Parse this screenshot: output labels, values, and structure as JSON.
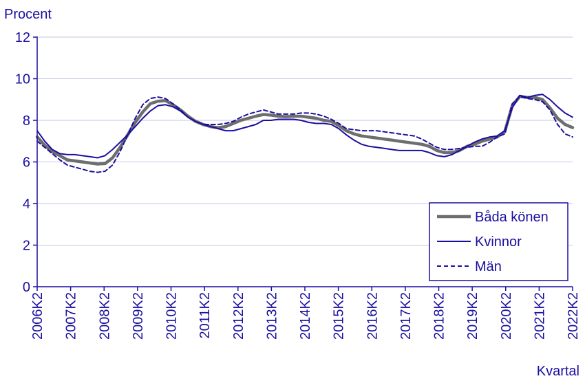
{
  "chart_data": {
    "type": "line",
    "ylabel": "Procent",
    "xlabel": "Kvartal",
    "ylim": [
      0,
      12
    ],
    "yticks": [
      0,
      2,
      4,
      6,
      8,
      10,
      12
    ],
    "xticks": [
      "2006K2",
      "2007K2",
      "2008K2",
      "2009K2",
      "2010K2",
      "2011K2",
      "2012K2",
      "2013K2",
      "2014K2",
      "2015K2",
      "2016K2",
      "2017K2",
      "2018K2",
      "2019K2",
      "2020K2",
      "2021K2",
      "2022K2"
    ],
    "grid": "horizontal",
    "legend_position": "bottom-right",
    "colors": {
      "axis": "#1a0fa0",
      "grid": "#c6c6e6",
      "both": "#6e6e6e",
      "women": "#1a0fa0",
      "men": "#1a0fa0"
    },
    "series": [
      {
        "name": "Båda könen",
        "style": "solid-thick",
        "values": [
          7.2,
          6.8,
          6.5,
          6.3,
          6.1,
          6.05,
          6.0,
          5.95,
          5.9,
          5.92,
          6.2,
          6.7,
          7.3,
          7.9,
          8.4,
          8.8,
          8.92,
          8.95,
          8.75,
          8.5,
          8.2,
          7.95,
          7.8,
          7.7,
          7.65,
          7.7,
          7.85,
          8.0,
          8.1,
          8.2,
          8.28,
          8.25,
          8.2,
          8.18,
          8.2,
          8.2,
          8.15,
          8.1,
          8.0,
          7.95,
          7.75,
          7.5,
          7.35,
          7.25,
          7.2,
          7.15,
          7.1,
          7.05,
          7.0,
          6.95,
          6.9,
          6.85,
          6.75,
          6.55,
          6.45,
          6.45,
          6.55,
          6.75,
          6.85,
          7.0,
          7.1,
          7.2,
          7.45,
          8.7,
          9.15,
          9.1,
          9.1,
          9.0,
          8.6,
          8.1,
          7.8,
          7.65
        ]
      },
      {
        "name": "Kvinnor",
        "style": "solid",
        "values": [
          7.5,
          7.0,
          6.6,
          6.4,
          6.35,
          6.35,
          6.3,
          6.25,
          6.2,
          6.3,
          6.6,
          6.95,
          7.3,
          7.7,
          8.1,
          8.45,
          8.7,
          8.75,
          8.65,
          8.45,
          8.15,
          7.95,
          7.8,
          7.7,
          7.6,
          7.5,
          7.5,
          7.6,
          7.7,
          7.8,
          8.0,
          8.0,
          8.05,
          8.05,
          8.05,
          8.0,
          7.9,
          7.85,
          7.85,
          7.8,
          7.6,
          7.3,
          7.05,
          6.85,
          6.75,
          6.7,
          6.65,
          6.6,
          6.55,
          6.55,
          6.55,
          6.55,
          6.45,
          6.3,
          6.25,
          6.35,
          6.55,
          6.75,
          6.95,
          7.1,
          7.2,
          7.25,
          7.5,
          8.6,
          9.2,
          9.1,
          9.2,
          9.25,
          9.0,
          8.65,
          8.35,
          8.15
        ]
      },
      {
        "name": "Män",
        "style": "dashed",
        "values": [
          7.0,
          6.7,
          6.4,
          6.1,
          5.85,
          5.75,
          5.65,
          5.55,
          5.5,
          5.55,
          5.85,
          6.5,
          7.3,
          8.1,
          8.75,
          9.05,
          9.12,
          9.05,
          8.8,
          8.5,
          8.15,
          7.95,
          7.8,
          7.8,
          7.8,
          7.85,
          7.95,
          8.15,
          8.3,
          8.4,
          8.5,
          8.4,
          8.3,
          8.3,
          8.3,
          8.35,
          8.35,
          8.3,
          8.2,
          8.05,
          7.85,
          7.6,
          7.55,
          7.5,
          7.5,
          7.5,
          7.45,
          7.4,
          7.35,
          7.3,
          7.25,
          7.1,
          6.9,
          6.7,
          6.6,
          6.6,
          6.65,
          6.7,
          6.75,
          6.75,
          6.95,
          7.2,
          7.35,
          8.8,
          9.15,
          9.05,
          9.0,
          8.9,
          8.5,
          7.8,
          7.35,
          7.2
        ]
      }
    ]
  }
}
